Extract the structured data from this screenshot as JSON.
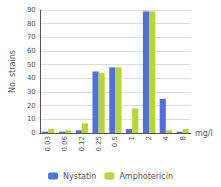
{
  "chart_data": {
    "type": "bar",
    "categories": [
      "0.03",
      "0.06",
      "0.12",
      "0.25",
      "0.5",
      "1",
      "2",
      "4",
      "8"
    ],
    "series": [
      {
        "name": "Nystatin",
        "values": [
          1,
          1,
          2,
          45,
          48,
          3,
          89,
          25,
          1
        ]
      },
      {
        "name": "Amphotericin",
        "values": [
          3,
          2,
          7,
          44,
          48,
          18,
          89,
          2,
          3
        ]
      }
    ],
    "xlabel": "mg/l",
    "ylabel": "No. strains",
    "ylim": [
      0,
      90
    ],
    "yticks": [
      0,
      10,
      20,
      30,
      40,
      50,
      60,
      70,
      80,
      90
    ],
    "grid": true,
    "legend": "bottom"
  }
}
